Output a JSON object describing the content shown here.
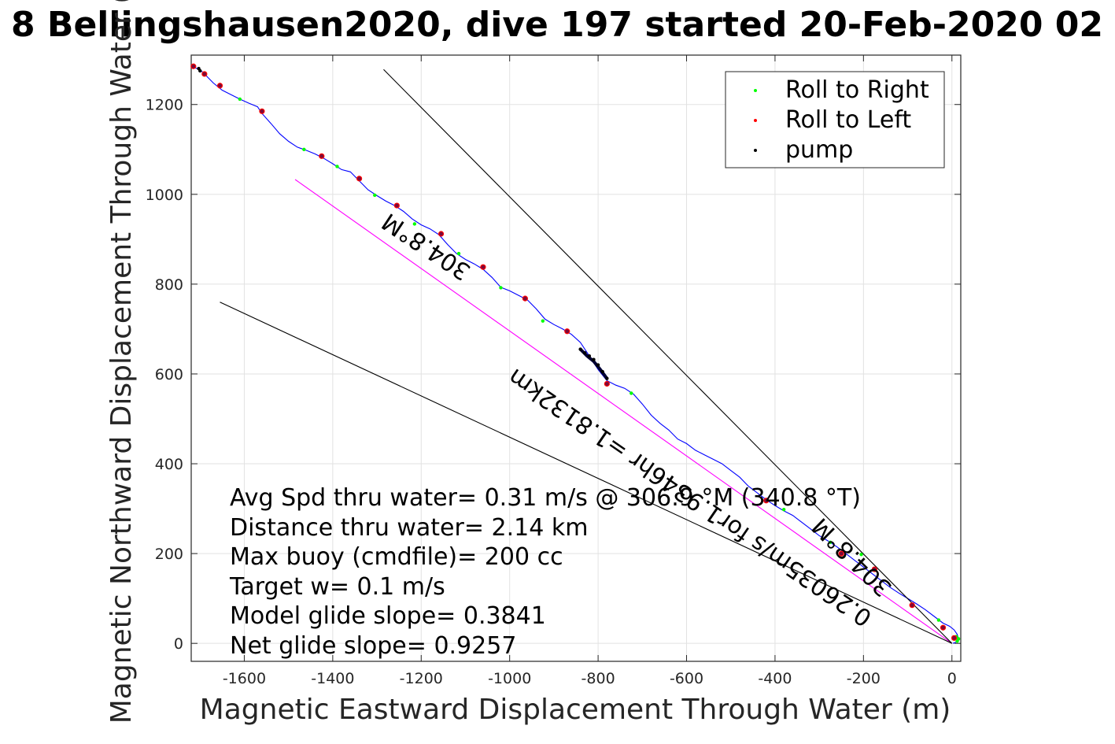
{
  "chart_data": {
    "type": "scatter",
    "title": "8 Bellingshausen2020, dive 197 started 20-Feb-2020 02",
    "xlabel": "Magnetic Eastward Displacement Through Water (m)",
    "ylabel": "Magnetic Northward Displacement Through Water (",
    "xlim": [
      -1720,
      20
    ],
    "ylim": [
      -40,
      1310
    ],
    "grid": true,
    "x_ticks": [
      "-1600",
      "-1400",
      "-1200",
      "-1000",
      "-800",
      "-600",
      "-400",
      "-200",
      "0"
    ],
    "y_ticks": [
      "0",
      "200",
      "400",
      "600",
      "800",
      "1000",
      "1200"
    ],
    "legend": {
      "position": "top-right",
      "entries": [
        {
          "label": "Roll to Right",
          "color": "#00ff00"
        },
        {
          "label": "Roll to Left",
          "color": "#ff0000"
        },
        {
          "label": "pump",
          "color": "#000000"
        }
      ]
    },
    "annotations": [
      "Avg Spd thru water=  0.31 m/s @ 306.9 °M (340.8 °T)",
      "Distance thru water=  2.14 km",
      "Max buoy (cmdfile)= 200 cc",
      "Target w= 0.1 m/s",
      "Model glide slope= 0.3841",
      "Net glide slope= 0.9257"
    ],
    "line_labels": [
      "304.8°M",
      "0.26035m/s for1.9346hr =1.8132km",
      "304.8°M"
    ],
    "colors": {
      "track": "#0000ff",
      "heading_line": "#ff00ff",
      "roll_right": "#00ff00",
      "roll_left": "#ff0000",
      "pump": "#000000",
      "pump_segment": "#000033"
    },
    "series": [
      {
        "type": "line",
        "color": "#0000ff",
        "x": [
          -1715,
          -1700,
          -1690,
          -1670,
          -1650,
          -1630,
          -1610,
          -1590,
          -1570,
          -1560,
          -1540,
          -1520,
          -1500,
          -1480,
          -1460,
          -1440,
          -1420,
          -1400,
          -1380,
          -1360,
          -1340,
          -1320,
          -1300,
          -1280,
          -1260,
          -1240,
          -1220,
          -1200,
          -1180,
          -1160,
          -1140,
          -1120,
          -1100,
          -1080,
          -1060,
          -1040,
          -1020,
          -1000,
          -980,
          -960,
          -940,
          -920,
          -900,
          -880,
          -860,
          -840,
          -820,
          -800,
          -780,
          -760,
          -740,
          -720,
          -700,
          -680,
          -660,
          -640,
          -620,
          -600,
          -580,
          -560,
          -540,
          -520,
          -500,
          -480,
          -460,
          -440,
          -420,
          -400,
          -380,
          -360,
          -340,
          -320,
          -300,
          -280,
          -260,
          -240,
          -220,
          -200,
          -180,
          -160,
          -140,
          -120,
          -100,
          -80,
          -60,
          -40,
          -20,
          -5,
          5,
          12,
          15,
          10,
          2
        ],
        "y": [
          1283,
          1278,
          1268,
          1248,
          1232,
          1222,
          1212,
          1203,
          1195,
          1180,
          1158,
          1135,
          1118,
          1105,
          1098,
          1090,
          1080,
          1068,
          1055,
          1050,
          1030,
          1010,
          997,
          985,
          975,
          962,
          945,
          932,
          923,
          910,
          888,
          868,
          855,
          845,
          833,
          815,
          793,
          785,
          775,
          765,
          745,
          722,
          710,
          700,
          688,
          670,
          640,
          610,
          585,
          575,
          568,
          555,
          533,
          508,
          490,
          475,
          455,
          445,
          430,
          420,
          410,
          400,
          385,
          370,
          350,
          335,
          320,
          307,
          295,
          285,
          270,
          255,
          240,
          228,
          215,
          200,
          185,
          170,
          155,
          140,
          125,
          112,
          100,
          88,
          75,
          60,
          45,
          38,
          30,
          20,
          10,
          3,
          0
        ]
      },
      {
        "type": "line",
        "color": "#ff00ff",
        "x": [
          -1485,
          0
        ],
        "y": [
          1033,
          0
        ]
      },
      {
        "type": "line",
        "color": "#000000",
        "x": [
          -1655,
          0
        ],
        "y": [
          760,
          0
        ]
      },
      {
        "type": "line",
        "color": "#000000",
        "x": [
          -1285,
          0
        ],
        "y": [
          1278,
          0
        ]
      },
      {
        "type": "line",
        "color": "#000033",
        "x": [
          -840,
          -825,
          -810,
          -795,
          -780
        ],
        "y": [
          655,
          640,
          628,
          610,
          590
        ]
      },
      {
        "type": "points",
        "name": "Roll to Right",
        "color": "#00ff00",
        "x": [
          -1610,
          -1465,
          -1390,
          -1305,
          -1215,
          -1115,
          -1020,
          -925,
          -725,
          -380,
          -275,
          -205,
          -30,
          10,
          15,
          12
        ],
        "y": [
          1212,
          1100,
          1062,
          998,
          934,
          868,
          792,
          718,
          557,
          298,
          225,
          198,
          52,
          15,
          10,
          5
        ]
      },
      {
        "type": "points",
        "name": "Roll to Left",
        "color": "#ff0000",
        "x": [
          -1715,
          -1690,
          -1655,
          -1560,
          -1425,
          -1340,
          -1255,
          -1155,
          -1060,
          -965,
          -870,
          -780,
          -420,
          -250,
          -175,
          -90,
          -20,
          5
        ],
        "y": [
          1285,
          1268,
          1242,
          1185,
          1085,
          1035,
          975,
          912,
          838,
          768,
          695,
          578,
          318,
          200,
          165,
          85,
          35,
          12
        ],
        "style": "ring"
      },
      {
        "type": "points",
        "name": "pump",
        "color": "#000000",
        "x": [
          -1703,
          -1700,
          -840,
          -830,
          -820,
          -810,
          -800,
          -790,
          -780
        ],
        "y": [
          1280,
          1275,
          655,
          647,
          640,
          632,
          620,
          605,
          590
        ]
      }
    ]
  }
}
